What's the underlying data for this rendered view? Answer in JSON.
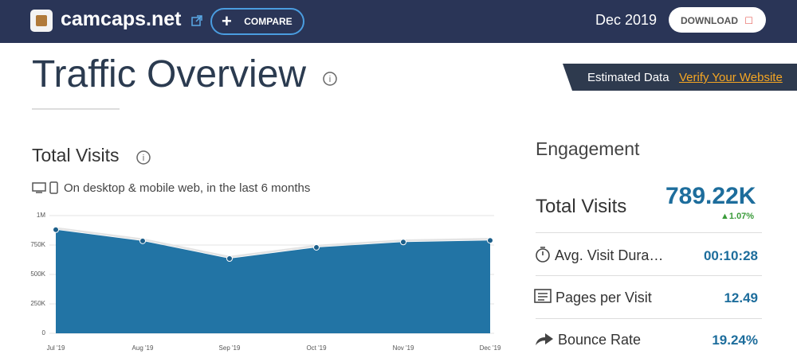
{
  "header": {
    "site": "camcaps.net",
    "compare": "COMPARE",
    "period": "Dec 2019",
    "download": "DOWNLOAD"
  },
  "title": "Traffic Overview",
  "banner": {
    "estimated": "Estimated Data",
    "verify": "Verify Your Website"
  },
  "visits": {
    "title": "Total Visits",
    "subtitle": "On desktop & mobile web, in the last 6 months"
  },
  "chart_data": {
    "type": "area",
    "categories": [
      "Jul '19",
      "Aug '19",
      "Sep '19",
      "Oct '19",
      "Nov '19",
      "Dec '19"
    ],
    "values": [
      880000,
      785000,
      635000,
      730000,
      775000,
      789220
    ],
    "color": "#2274a5",
    "line_color": "#e4e4e4",
    "marker_color": "#1d5f8a",
    "ylim": [
      0,
      1000000
    ],
    "yticks": [
      0,
      {
        "value": 250000,
        "label": "250K"
      },
      {
        "value": 500000,
        "label": "500K"
      },
      {
        "value": 750000,
        "label": "750K"
      },
      {
        "value": 1000000,
        "label": "1M"
      }
    ],
    "grid": true
  },
  "engagement": {
    "title": "Engagement",
    "total_visits": {
      "label": "Total Visits",
      "value": "789.22K",
      "change": "1.07%"
    },
    "rows": [
      {
        "label": "Avg. Visit Duration",
        "value": "00:10:28"
      },
      {
        "label": "Pages per Visit",
        "value": "12.49"
      },
      {
        "label": "Bounce Rate",
        "value": "19.24%"
      }
    ]
  }
}
